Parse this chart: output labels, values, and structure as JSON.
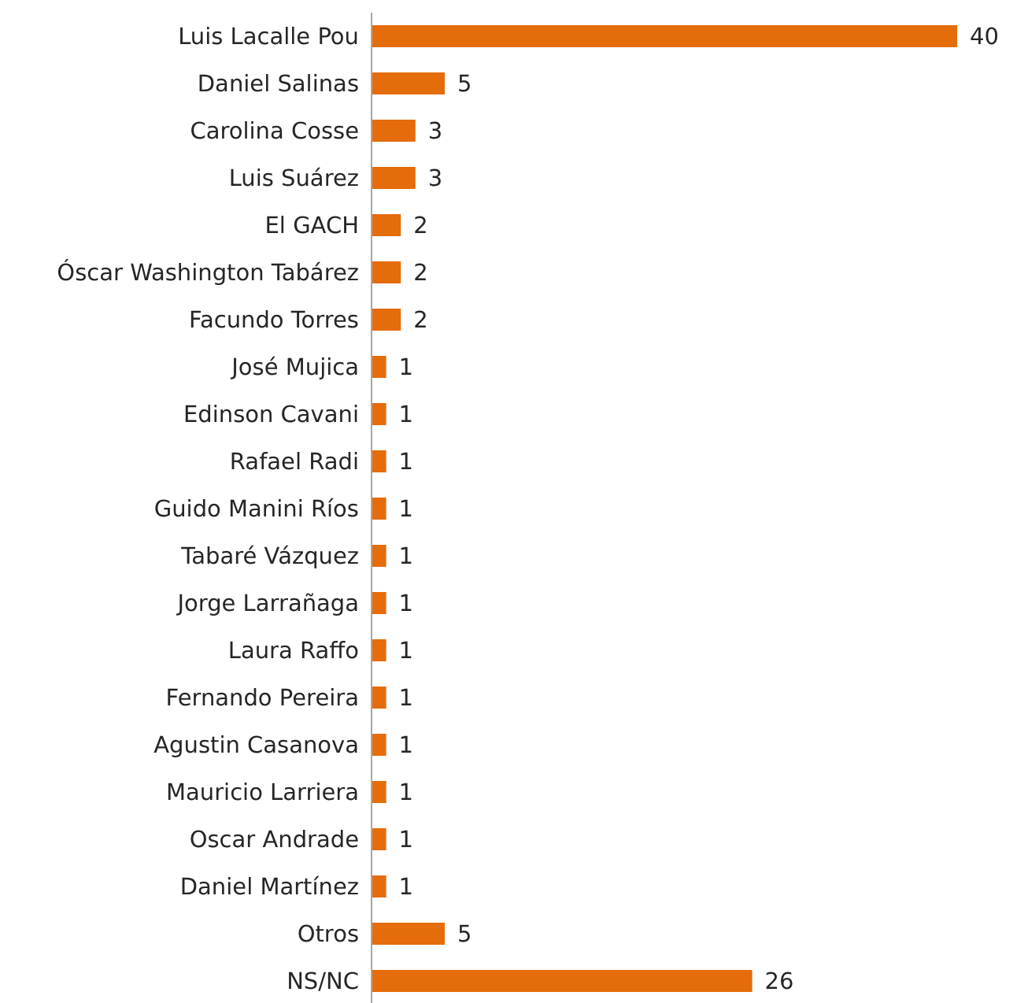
{
  "chart_data": {
    "type": "bar",
    "orientation": "horizontal",
    "categories": [
      "Luis Lacalle Pou",
      "Daniel Salinas",
      "Carolina Cosse",
      "Luis Suárez",
      "El GACH",
      "Óscar Washington Tabárez",
      "Facundo Torres",
      "José Mujica",
      "Edinson Cavani",
      "Rafael Radi",
      "Guido Manini Ríos",
      "Tabaré Vázquez",
      "Jorge Larrañaga",
      "Laura Raffo",
      "Fernando Pereira",
      "Agustin Casanova",
      "Mauricio Larriera",
      "Oscar Andrade",
      "Daniel Martínez",
      "Otros",
      "NS/NC"
    ],
    "values": [
      40,
      5,
      3,
      3,
      2,
      2,
      2,
      1,
      1,
      1,
      1,
      1,
      1,
      1,
      1,
      1,
      1,
      1,
      1,
      5,
      26
    ],
    "color": "#e46c0a",
    "data_labels": true,
    "grid": false,
    "legend": false
  }
}
